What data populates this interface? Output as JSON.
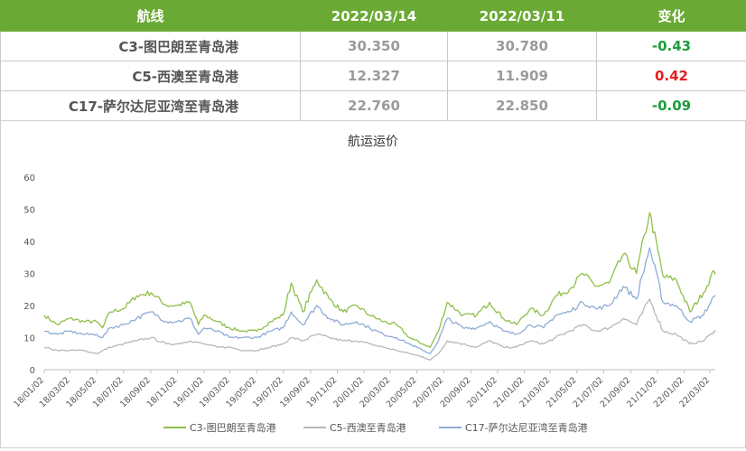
{
  "table": {
    "headers": [
      "航线",
      "2022/03/14",
      "2022/03/11",
      "变化"
    ],
    "rows": [
      {
        "route": "C3-图巴朗至青岛港",
        "current": "30.350",
        "previous": "30.780",
        "change": "-0.43",
        "direction": "down"
      },
      {
        "route": "C5-西澳至青岛港",
        "current": "12.327",
        "previous": "11.909",
        "change": "0.42",
        "direction": "up"
      },
      {
        "route": "C17-萨尔达尼亚湾至青岛港",
        "current": "22.760",
        "previous": "22.850",
        "change": "-0.09",
        "direction": "down"
      }
    ],
    "colors": {
      "header_bg": "#6aaa34",
      "negative": "#1a9e3a",
      "positive": "#e02020"
    }
  },
  "chart_data": {
    "type": "line",
    "title": "航运运价",
    "xlabel": "",
    "ylabel": "",
    "ylim": [
      0,
      60
    ],
    "yticks": [
      0,
      10,
      20,
      30,
      40,
      50,
      60
    ],
    "x_ticks": [
      "18/01/02",
      "18/03/02",
      "18/05/02",
      "18/07/02",
      "18/09/02",
      "18/11/02",
      "19/01/02",
      "19/03/02",
      "19/05/02",
      "19/07/02",
      "19/09/02",
      "19/11/02",
      "20/01/02",
      "20/03/02",
      "20/05/02",
      "20/07/02",
      "20/09/02",
      "20/11/02",
      "21/01/02",
      "21/03/02",
      "21/05/02",
      "21/07/02",
      "21/09/02",
      "21/11/02",
      "22/01/02",
      "22/03/02"
    ],
    "x_range": [
      "2018-01-02",
      "2022-03-14"
    ],
    "legend": "bottom",
    "grid": false,
    "series": [
      {
        "name": "C3-图巴朗至青岛港",
        "color": "#8fbf4a",
        "points": [
          [
            "2018-01-02",
            17
          ],
          [
            "2018-02-01",
            14
          ],
          [
            "2018-03-01",
            16
          ],
          [
            "2018-04-02",
            15
          ],
          [
            "2018-05-01",
            15
          ],
          [
            "2018-05-15",
            13
          ],
          [
            "2018-06-01",
            18
          ],
          [
            "2018-07-02",
            19
          ],
          [
            "2018-08-01",
            23
          ],
          [
            "2018-09-03",
            24
          ],
          [
            "2018-10-08",
            20
          ],
          [
            "2018-11-01",
            20
          ],
          [
            "2018-12-01",
            21
          ],
          [
            "2018-12-20",
            14
          ],
          [
            "2019-01-02",
            17
          ],
          [
            "2019-02-01",
            15
          ],
          [
            "2019-03-01",
            13
          ],
          [
            "2019-04-01",
            12
          ],
          [
            "2019-05-02",
            12
          ],
          [
            "2019-06-03",
            15
          ],
          [
            "2019-07-01",
            17
          ],
          [
            "2019-07-20",
            27
          ],
          [
            "2019-08-15",
            18
          ],
          [
            "2019-09-16",
            28
          ],
          [
            "2019-10-15",
            22
          ],
          [
            "2019-11-15",
            18
          ],
          [
            "2019-12-16",
            20
          ],
          [
            "2020-01-15",
            17
          ],
          [
            "2020-02-15",
            15
          ],
          [
            "2020-03-16",
            14
          ],
          [
            "2020-04-15",
            10
          ],
          [
            "2020-05-15",
            8
          ],
          [
            "2020-06-01",
            7
          ],
          [
            "2020-06-20",
            12
          ],
          [
            "2020-07-10",
            21
          ],
          [
            "2020-08-15",
            17
          ],
          [
            "2020-09-15",
            17
          ],
          [
            "2020-10-15",
            21
          ],
          [
            "2020-11-15",
            16
          ],
          [
            "2020-12-15",
            14
          ],
          [
            "2021-01-15",
            19
          ],
          [
            "2021-02-15",
            17
          ],
          [
            "2021-03-15",
            23
          ],
          [
            "2021-04-15",
            25
          ],
          [
            "2021-05-15",
            30
          ],
          [
            "2021-06-15",
            26
          ],
          [
            "2021-07-15",
            27
          ],
          [
            "2021-08-16",
            36
          ],
          [
            "2021-09-15",
            30
          ],
          [
            "2021-10-15",
            49
          ],
          [
            "2021-11-15",
            29
          ],
          [
            "2021-12-15",
            28
          ],
          [
            "2022-01-15",
            18
          ],
          [
            "2022-02-15",
            24
          ],
          [
            "2022-03-11",
            30.78
          ],
          [
            "2022-03-14",
            30.35
          ]
        ]
      },
      {
        "name": "C5-西澳至青岛港",
        "color": "#b8b8b8",
        "points": [
          [
            "2018-01-02",
            7
          ],
          [
            "2018-02-01",
            6
          ],
          [
            "2018-03-01",
            6
          ],
          [
            "2018-04-02",
            6
          ],
          [
            "2018-05-01",
            5
          ],
          [
            "2018-06-01",
            7
          ],
          [
            "2018-07-02",
            8
          ],
          [
            "2018-08-01",
            9
          ],
          [
            "2018-09-03",
            10
          ],
          [
            "2018-10-08",
            8
          ],
          [
            "2018-11-01",
            8
          ],
          [
            "2018-12-01",
            9
          ],
          [
            "2019-01-02",
            8
          ],
          [
            "2019-02-01",
            7
          ],
          [
            "2019-03-01",
            7
          ],
          [
            "2019-04-01",
            6
          ],
          [
            "2019-05-02",
            6
          ],
          [
            "2019-06-03",
            7
          ],
          [
            "2019-07-01",
            8
          ],
          [
            "2019-07-20",
            10
          ],
          [
            "2019-08-15",
            9
          ],
          [
            "2019-09-16",
            11
          ],
          [
            "2019-10-15",
            10
          ],
          [
            "2019-11-15",
            9
          ],
          [
            "2019-12-16",
            9
          ],
          [
            "2020-01-15",
            8
          ],
          [
            "2020-02-15",
            7
          ],
          [
            "2020-03-16",
            6
          ],
          [
            "2020-04-15",
            5
          ],
          [
            "2020-05-15",
            4
          ],
          [
            "2020-06-01",
            3
          ],
          [
            "2020-06-20",
            5
          ],
          [
            "2020-07-10",
            9
          ],
          [
            "2020-08-15",
            8
          ],
          [
            "2020-09-15",
            7
          ],
          [
            "2020-10-15",
            9
          ],
          [
            "2020-11-15",
            7
          ],
          [
            "2020-12-15",
            7
          ],
          [
            "2021-01-15",
            9
          ],
          [
            "2021-02-15",
            8
          ],
          [
            "2021-03-15",
            10
          ],
          [
            "2021-04-15",
            12
          ],
          [
            "2021-05-15",
            14
          ],
          [
            "2021-06-15",
            12
          ],
          [
            "2021-07-15",
            13
          ],
          [
            "2021-08-16",
            16
          ],
          [
            "2021-09-15",
            14
          ],
          [
            "2021-10-15",
            22
          ],
          [
            "2021-11-15",
            12
          ],
          [
            "2021-12-15",
            11
          ],
          [
            "2022-01-15",
            8
          ],
          [
            "2022-02-15",
            9
          ],
          [
            "2022-03-11",
            11.909
          ],
          [
            "2022-03-14",
            12.327
          ]
        ]
      },
      {
        "name": "C17-萨尔达尼亚湾至青岛港",
        "color": "#8facd6",
        "points": [
          [
            "2018-01-02",
            12
          ],
          [
            "2018-02-01",
            11
          ],
          [
            "2018-03-01",
            12
          ],
          [
            "2018-04-02",
            11
          ],
          [
            "2018-05-01",
            11
          ],
          [
            "2018-05-15",
            10
          ],
          [
            "2018-06-01",
            13
          ],
          [
            "2018-07-02",
            14
          ],
          [
            "2018-08-01",
            16
          ],
          [
            "2018-09-03",
            18
          ],
          [
            "2018-10-08",
            15
          ],
          [
            "2018-11-01",
            15
          ],
          [
            "2018-12-01",
            16
          ],
          [
            "2018-12-20",
            11
          ],
          [
            "2019-01-02",
            13
          ],
          [
            "2019-02-01",
            12
          ],
          [
            "2019-03-01",
            10
          ],
          [
            "2019-04-01",
            10
          ],
          [
            "2019-05-02",
            10
          ],
          [
            "2019-06-03",
            12
          ],
          [
            "2019-07-01",
            13
          ],
          [
            "2019-07-20",
            18
          ],
          [
            "2019-08-15",
            14
          ],
          [
            "2019-09-16",
            20
          ],
          [
            "2019-10-15",
            16
          ],
          [
            "2019-11-15",
            14
          ],
          [
            "2019-12-16",
            15
          ],
          [
            "2020-01-15",
            13
          ],
          [
            "2020-02-15",
            11
          ],
          [
            "2020-03-16",
            10
          ],
          [
            "2020-04-15",
            8
          ],
          [
            "2020-05-15",
            6
          ],
          [
            "2020-06-01",
            5
          ],
          [
            "2020-06-20",
            9
          ],
          [
            "2020-07-10",
            16
          ],
          [
            "2020-08-15",
            13
          ],
          [
            "2020-09-15",
            13
          ],
          [
            "2020-10-15",
            15
          ],
          [
            "2020-11-15",
            12
          ],
          [
            "2020-12-15",
            11
          ],
          [
            "2021-01-15",
            14
          ],
          [
            "2021-02-15",
            13
          ],
          [
            "2021-03-15",
            17
          ],
          [
            "2021-04-15",
            18
          ],
          [
            "2021-05-15",
            21
          ],
          [
            "2021-06-15",
            19
          ],
          [
            "2021-07-15",
            20
          ],
          [
            "2021-08-16",
            26
          ],
          [
            "2021-09-15",
            22
          ],
          [
            "2021-10-15",
            38
          ],
          [
            "2021-11-15",
            21
          ],
          [
            "2021-12-15",
            20
          ],
          [
            "2022-01-15",
            15
          ],
          [
            "2022-02-15",
            17
          ],
          [
            "2022-03-11",
            22.85
          ],
          [
            "2022-03-14",
            22.76
          ]
        ]
      }
    ]
  }
}
